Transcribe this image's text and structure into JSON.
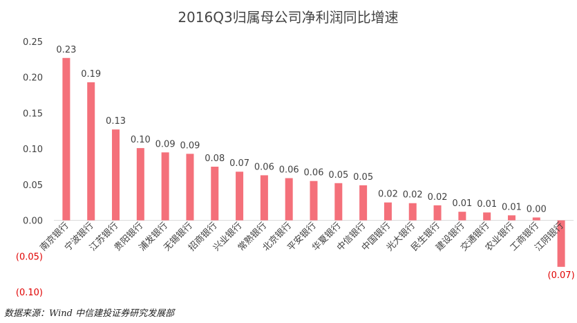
{
  "chart_data": {
    "type": "bar",
    "title": "2016Q3归属母公司净利润同比增速",
    "categories": [
      "南京银行",
      "宁波银行",
      "江苏银行",
      "贵阳银行",
      "浦发银行",
      "无锡银行",
      "招商银行",
      "兴业银行",
      "常熟银行",
      "北京银行",
      "平安银行",
      "华夏银行",
      "中信银行",
      "中国银行",
      "光大银行",
      "民生银行",
      "建设银行",
      "交通银行",
      "农业银行",
      "工商银行",
      "江阴银行"
    ],
    "values": [
      0.227,
      0.193,
      0.127,
      0.101,
      0.095,
      0.093,
      0.075,
      0.068,
      0.063,
      0.059,
      0.055,
      0.052,
      0.049,
      0.025,
      0.024,
      0.021,
      0.012,
      0.011,
      0.007,
      0.004,
      -0.065
    ],
    "data_labels": [
      "0.23",
      "0.19",
      "0.13",
      "0.10",
      "0.09",
      "0.09",
      "0.08",
      "0.07",
      "0.06",
      "0.06",
      "0.06",
      "0.05",
      "0.05",
      "0.02",
      "0.02",
      "0.02",
      "0.01",
      "0.01",
      "0.01",
      "0.00",
      "(0.07)"
    ],
    "ylim": [
      -0.1,
      0.25
    ],
    "yticks": [
      0.25,
      0.2,
      0.15,
      0.1,
      0.05,
      0.0,
      -0.05,
      -0.1
    ],
    "ytick_labels": [
      "0.25",
      "0.20",
      "0.15",
      "0.10",
      "0.05",
      "0.00",
      "(0.05)",
      "(0.10)"
    ],
    "bar_color": "#f4707a",
    "negative_label_color": "#e00000",
    "grid": false
  },
  "source": "数据来源：Wind  中信建投证券研究发展部"
}
